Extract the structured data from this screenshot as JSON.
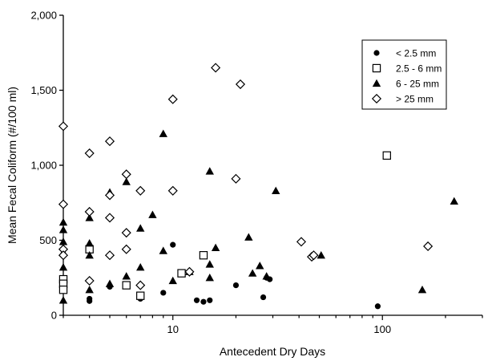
{
  "chart_data": {
    "type": "scatter",
    "title": "",
    "xlabel": "Antecedent Dry Days",
    "ylabel": "Mean Fecal Coliform (#/100 ml)",
    "x_scale": "log",
    "xlim": [
      3,
      300
    ],
    "ylim": [
      0,
      2000
    ],
    "x_ticks": [
      10,
      100
    ],
    "x_tick_labels": [
      "10",
      "100"
    ],
    "y_ticks": [
      0,
      500,
      1000,
      1500,
      2000
    ],
    "y_tick_labels": [
      "0",
      "500",
      "1,000",
      "1,500",
      "2,000"
    ],
    "grid": false,
    "legend_position": "top-right",
    "series": [
      {
        "name": "< 2.5 mm",
        "marker": "filled-circle",
        "color": "#000000",
        "x": [
          4,
          4,
          5,
          7,
          9,
          10,
          13,
          14,
          15,
          20,
          27,
          28,
          29,
          95
        ],
        "y": [
          110,
          95,
          190,
          110,
          150,
          470,
          100,
          90,
          100,
          200,
          120,
          250,
          240,
          60
        ]
      },
      {
        "name": "2.5 - 6 mm",
        "marker": "open-square",
        "color": "#000000",
        "x": [
          3,
          3,
          3,
          4,
          6,
          7,
          11,
          14,
          105
        ],
        "y": [
          240,
          210,
          170,
          440,
          200,
          130,
          280,
          400,
          1065
        ]
      },
      {
        "name": "6 - 25 mm",
        "marker": "filled-triangle",
        "color": "#000000",
        "x": [
          3,
          3,
          3,
          3,
          3,
          3,
          4,
          4,
          4,
          4,
          5,
          5,
          6,
          6,
          7,
          7,
          8,
          9,
          9,
          10,
          12,
          15,
          15,
          15,
          16,
          23,
          24,
          26,
          28,
          31,
          51,
          155,
          220
        ],
        "y": [
          620,
          570,
          490,
          420,
          320,
          100,
          650,
          480,
          400,
          170,
          820,
          210,
          890,
          260,
          580,
          320,
          670,
          1210,
          430,
          230,
          290,
          960,
          340,
          250,
          450,
          520,
          280,
          330,
          260,
          830,
          400,
          170,
          760
        ]
      },
      {
        "name": "> 25 mm",
        "marker": "open-diamond",
        "color": "#000000",
        "x": [
          3,
          3,
          3,
          3,
          4,
          4,
          4,
          5,
          5,
          5,
          5,
          6,
          6,
          6,
          7,
          7,
          10,
          10,
          12,
          16,
          20,
          21,
          41,
          46,
          47,
          165
        ],
        "y": [
          1260,
          740,
          440,
          400,
          1080,
          690,
          230,
          1160,
          800,
          650,
          400,
          940,
          550,
          440,
          830,
          200,
          1440,
          830,
          290,
          1650,
          910,
          1540,
          490,
          390,
          400,
          460
        ]
      }
    ]
  }
}
